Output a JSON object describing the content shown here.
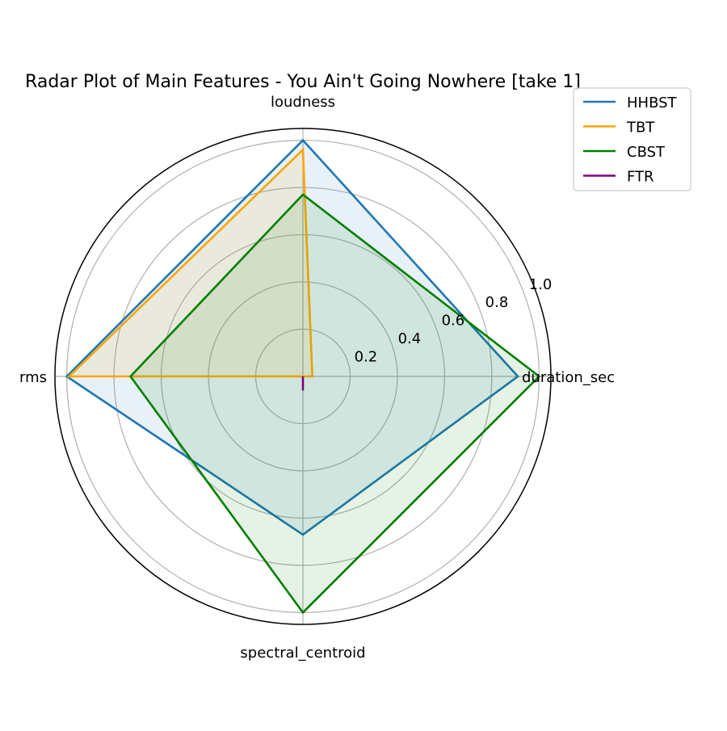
{
  "chart_data": {
    "type": "radar",
    "title": "Radar Plot of Main Features - You Ain't Going Nowhere [take 1]",
    "axes": [
      "duration_sec",
      "loudness",
      "rms",
      "spectral_centroid"
    ],
    "rlim": [
      0,
      1.05
    ],
    "rticks": [
      0.2,
      0.4,
      0.6,
      0.8,
      1.0
    ],
    "rtick_labels": [
      "0.2",
      "0.4",
      "0.6",
      "0.8",
      "1.0"
    ],
    "grid": true,
    "legend_position": "top-right",
    "series": [
      {
        "name": "HHBST",
        "color": "#1f77b4",
        "fill": true,
        "values": [
          0.91,
          1.0,
          1.0,
          0.67
        ]
      },
      {
        "name": "TBT",
        "color": "#ffa500",
        "fill": true,
        "values": [
          0.04,
          0.96,
          0.99,
          0.0
        ]
      },
      {
        "name": "CBST",
        "color": "#008000",
        "fill": true,
        "values": [
          1.0,
          0.77,
          0.73,
          1.0
        ]
      },
      {
        "name": "FTR",
        "color": "#800080",
        "fill": false,
        "values": [
          0.0,
          0.0,
          0.0,
          0.06
        ]
      }
    ]
  }
}
